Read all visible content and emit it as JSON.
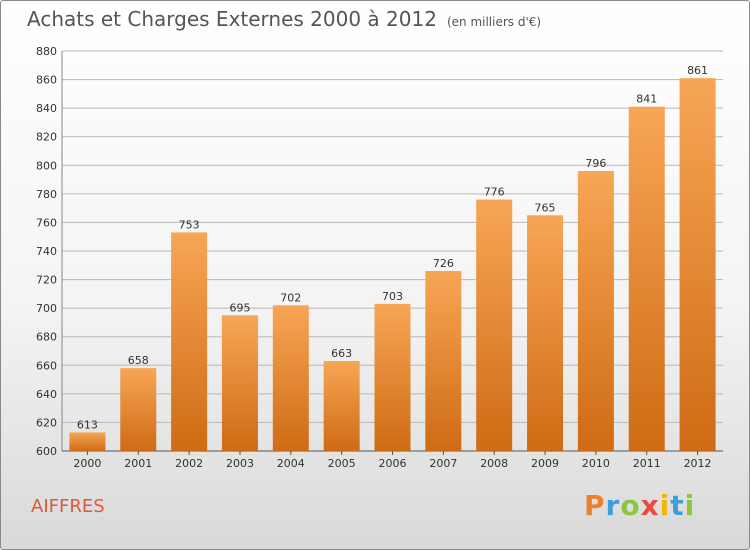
{
  "header": {
    "title": "Achats et Charges Externes 2000 à 2012",
    "subtitle": "(en milliers d'€)"
  },
  "footer": {
    "place": "AIFFRES",
    "logo_text": "Proxiti"
  },
  "colors": {
    "bar_top": "#f7a655",
    "bar_bottom": "#cf6b14",
    "grid": "#b8b8b8",
    "place_text": "#e0573a"
  },
  "chart_data": {
    "type": "bar",
    "title": "Achats et Charges Externes 2000 à 2012",
    "subtitle": "(en milliers d'€)",
    "categories": [
      "2000",
      "2001",
      "2002",
      "2003",
      "2004",
      "2005",
      "2006",
      "2007",
      "2008",
      "2009",
      "2010",
      "2011",
      "2012"
    ],
    "values": [
      613,
      658,
      753,
      695,
      702,
      663,
      703,
      726,
      776,
      765,
      796,
      841,
      861
    ],
    "ylim": [
      600,
      880
    ],
    "yticks": [
      600,
      620,
      640,
      660,
      680,
      700,
      720,
      740,
      760,
      780,
      800,
      820,
      840,
      860,
      880
    ],
    "grid": true,
    "data_labels": true
  }
}
